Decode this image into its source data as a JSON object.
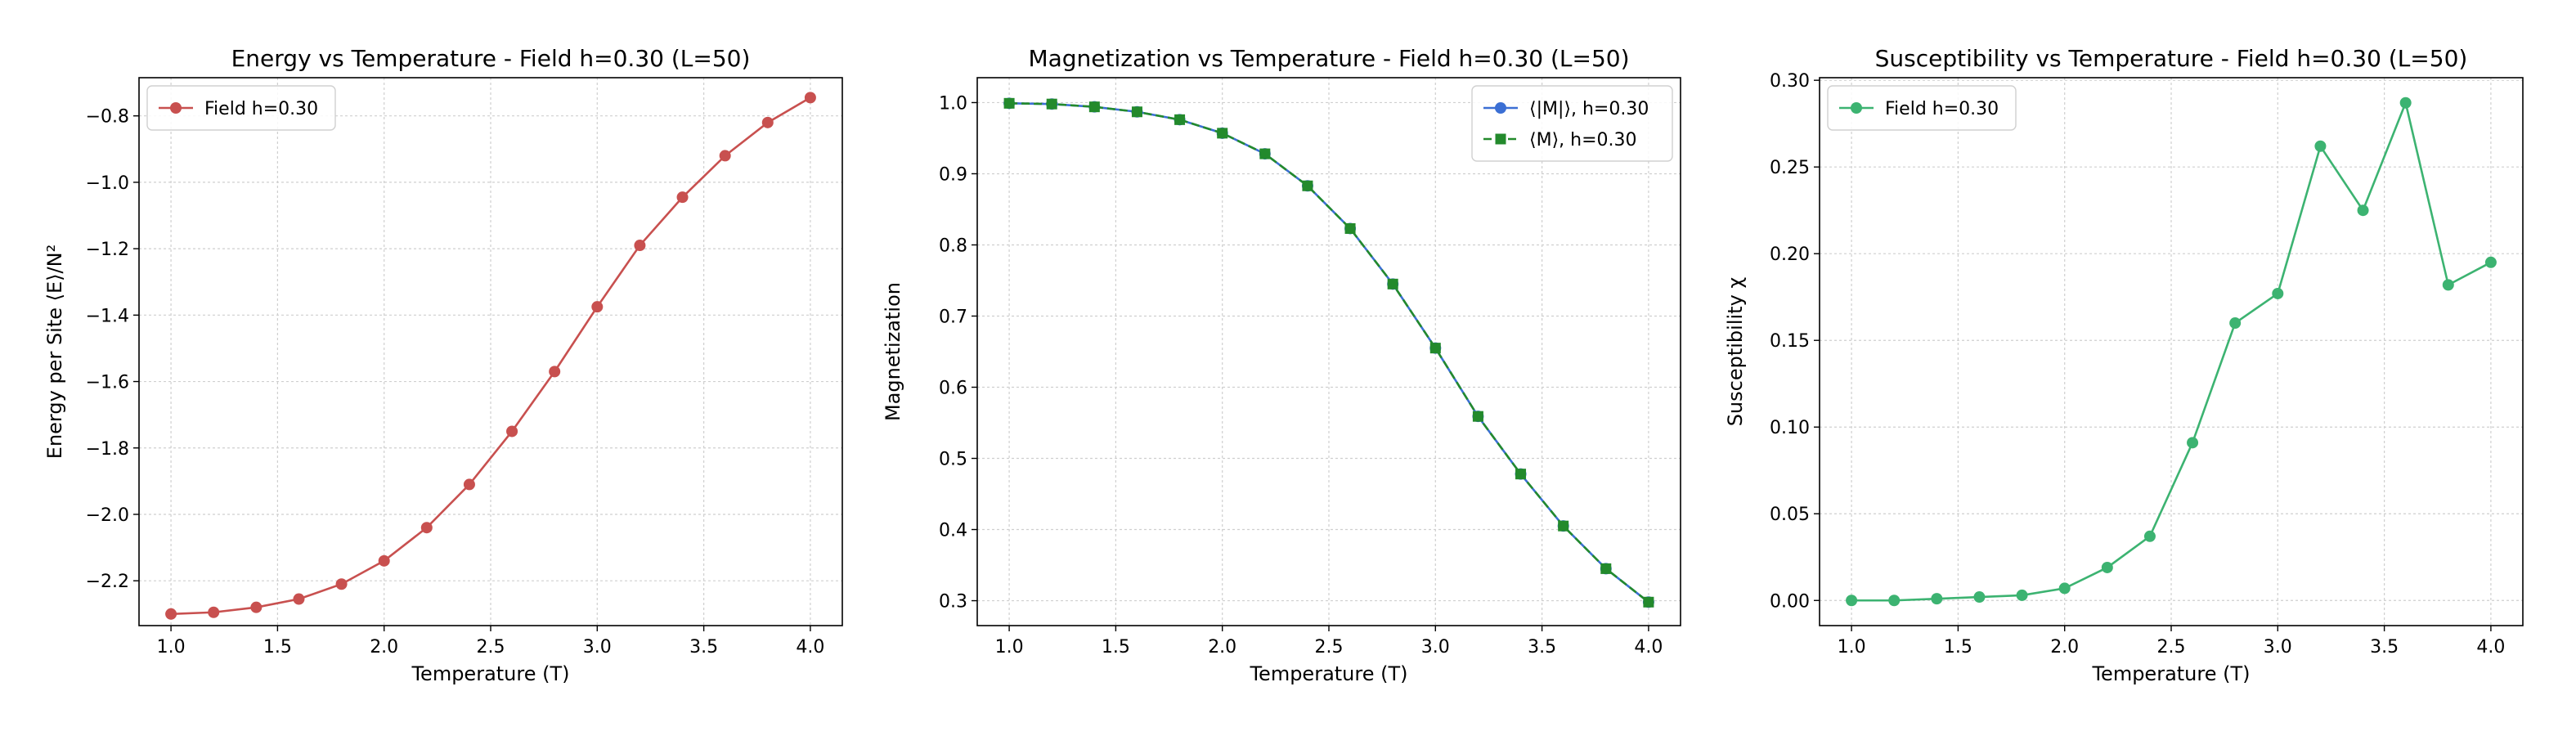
{
  "chart_data": [
    {
      "type": "line",
      "title": "Energy vs Temperature - Field h=0.30 (L=50)",
      "xlabel": "Temperature (T)",
      "ylabel": "Energy per Site ⟨E⟩/N²",
      "xlim": [
        0.85,
        4.15
      ],
      "ylim": [
        -2.335,
        -0.685
      ],
      "xticks": [
        1.0,
        1.5,
        2.0,
        2.5,
        3.0,
        3.5,
        4.0
      ],
      "xtick_labels": [
        "1.0",
        "1.5",
        "2.0",
        "2.5",
        "3.0",
        "3.5",
        "4.0"
      ],
      "yticks": [
        -2.2,
        -2.0,
        -1.8,
        -1.6,
        -1.4,
        -1.2,
        -1.0,
        -0.8
      ],
      "ytick_labels": [
        "−2.2",
        "−2.0",
        "−1.8",
        "−1.6",
        "−1.4",
        "−1.2",
        "−1.0",
        "−0.8"
      ],
      "grid": true,
      "legend_position": "top-left",
      "x": [
        1.0,
        1.2,
        1.4,
        1.6,
        1.8,
        2.0,
        2.2,
        2.4,
        2.6,
        2.8,
        3.0,
        3.2,
        3.4,
        3.6,
        3.8,
        4.0
      ],
      "series": [
        {
          "name": "Field h=0.30",
          "color": "#c8504f",
          "marker": "circle",
          "linestyle": "solid",
          "values": [
            -2.3,
            -2.295,
            -2.28,
            -2.255,
            -2.21,
            -2.14,
            -2.04,
            -1.91,
            -1.75,
            -1.57,
            -1.375,
            -1.19,
            -1.045,
            -0.92,
            -0.82,
            -0.745
          ]
        }
      ]
    },
    {
      "type": "line",
      "title": "Magnetization vs Temperature - Field h=0.30 (L=50)",
      "xlabel": "Temperature (T)",
      "ylabel": "Magnetization",
      "xlim": [
        0.85,
        4.15
      ],
      "ylim": [
        0.265,
        1.035
      ],
      "xticks": [
        1.0,
        1.5,
        2.0,
        2.5,
        3.0,
        3.5,
        4.0
      ],
      "xtick_labels": [
        "1.0",
        "1.5",
        "2.0",
        "2.5",
        "3.0",
        "3.5",
        "4.0"
      ],
      "yticks": [
        0.3,
        0.4,
        0.5,
        0.6,
        0.7,
        0.8,
        0.9,
        1.0
      ],
      "ytick_labels": [
        "0.3",
        "0.4",
        "0.5",
        "0.6",
        "0.7",
        "0.8",
        "0.9",
        "1.0"
      ],
      "grid": true,
      "legend_position": "top-right",
      "x": [
        1.0,
        1.2,
        1.4,
        1.6,
        1.8,
        2.0,
        2.2,
        2.4,
        2.6,
        2.8,
        3.0,
        3.2,
        3.4,
        3.6,
        3.8,
        4.0
      ],
      "series": [
        {
          "name": "⟨|M|⟩, h=0.30",
          "color": "#3b6fd4",
          "marker": "circle",
          "linestyle": "solid",
          "values": [
            0.999,
            0.998,
            0.994,
            0.987,
            0.976,
            0.957,
            0.928,
            0.883,
            0.823,
            0.745,
            0.655,
            0.559,
            0.478,
            0.405,
            0.345,
            0.298
          ]
        },
        {
          "name": "⟨M⟩, h=0.30",
          "color": "#238a2c",
          "marker": "square",
          "linestyle": "dashed",
          "values": [
            0.999,
            0.998,
            0.994,
            0.987,
            0.976,
            0.957,
            0.928,
            0.883,
            0.823,
            0.745,
            0.655,
            0.559,
            0.478,
            0.405,
            0.345,
            0.298
          ]
        }
      ]
    },
    {
      "type": "line",
      "title": "Susceptibility vs Temperature - Field h=0.30 (L=50)",
      "xlabel": "Temperature (T)",
      "ylabel": "Susceptibility χ",
      "xlim": [
        0.85,
        4.15
      ],
      "ylim": [
        -0.0145,
        0.3015
      ],
      "xticks": [
        1.0,
        1.5,
        2.0,
        2.5,
        3.0,
        3.5,
        4.0
      ],
      "xtick_labels": [
        "1.0",
        "1.5",
        "2.0",
        "2.5",
        "3.0",
        "3.5",
        "4.0"
      ],
      "yticks": [
        0.0,
        0.05,
        0.1,
        0.15,
        0.2,
        0.25,
        0.3
      ],
      "ytick_labels": [
        "0.00",
        "0.05",
        "0.10",
        "0.15",
        "0.20",
        "0.25",
        "0.30"
      ],
      "grid": true,
      "legend_position": "top-left",
      "x": [
        1.0,
        1.2,
        1.4,
        1.6,
        1.8,
        2.0,
        2.2,
        2.4,
        2.6,
        2.8,
        3.0,
        3.2,
        3.4,
        3.6,
        3.8,
        4.0
      ],
      "series": [
        {
          "name": "Field h=0.30",
          "color": "#3cb371",
          "marker": "circle",
          "linestyle": "solid",
          "values": [
            0.0,
            0.0,
            0.001,
            0.002,
            0.003,
            0.007,
            0.019,
            0.037,
            0.091,
            0.16,
            0.177,
            0.262,
            0.225,
            0.287,
            0.182,
            0.195
          ]
        }
      ]
    }
  ]
}
